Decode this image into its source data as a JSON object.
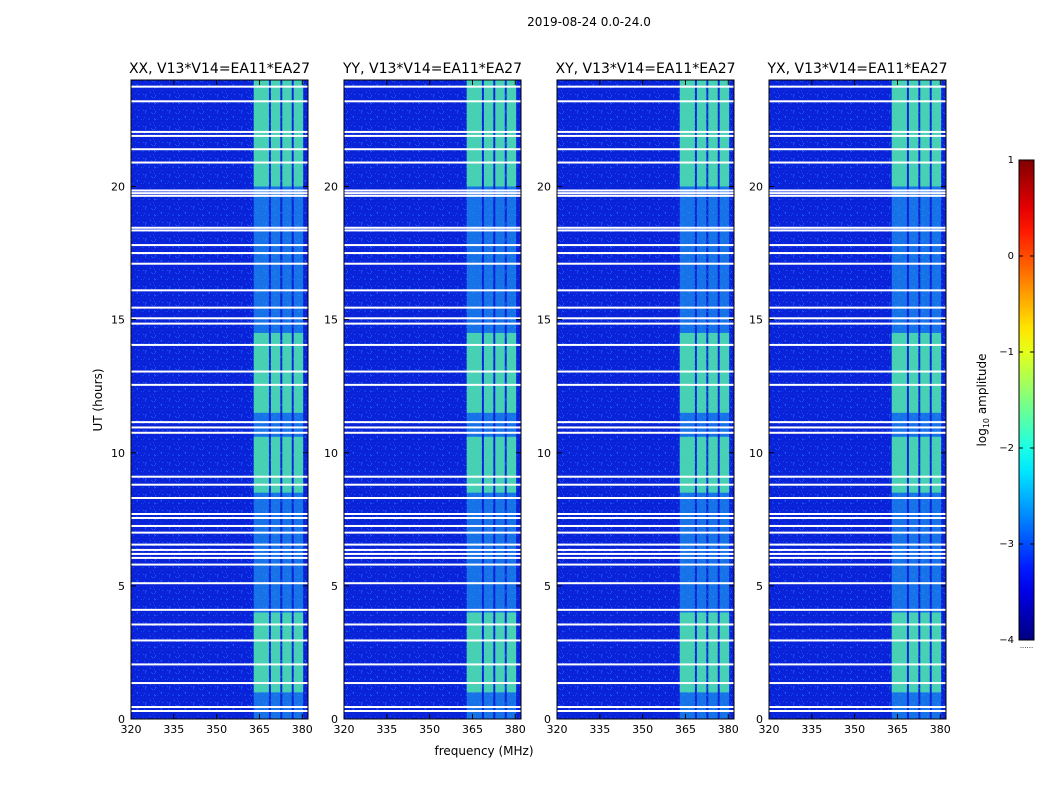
{
  "chart_data": {
    "type": "heatmap",
    "suptitle": "2019-08-24 0.0-24.0",
    "xlabel": "frequency (MHz)",
    "ylabel": "UT (hours)",
    "xlim": [
      320,
      382
    ],
    "ylim": [
      0,
      24
    ],
    "xticks": [
      320,
      335,
      350,
      365,
      380
    ],
    "yticks": [
      0,
      5,
      10,
      15,
      20
    ],
    "panels": [
      {
        "title": "XX, V13*V14=EA11*EA27"
      },
      {
        "title": "YY, V13*V14=EA11*EA27"
      },
      {
        "title": "XY, V13*V14=EA11*EA27"
      },
      {
        "title": "YX, V13*V14=EA11*EA27"
      }
    ],
    "colorbar": {
      "label": "log10 amplitude",
      "label_base": "log",
      "label_sub": "10",
      "label_rest": " amplitude",
      "range": [
        -4,
        1
      ],
      "ticks": [
        "1",
        "0",
        "−1",
        "−2",
        "−3",
        "−4"
      ],
      "tick_values": [
        1,
        0,
        -1,
        -2,
        -3,
        -4
      ],
      "colormap": "jet",
      "under_label": "......"
    },
    "gaps_hours": [
      0.3,
      0.45,
      1.35,
      2.05,
      2.95,
      3.55,
      4.1,
      5.1,
      5.8,
      6.05,
      6.2,
      6.35,
      6.55,
      7.0,
      7.25,
      7.55,
      7.7,
      8.3,
      8.8,
      9.1,
      10.75,
      10.95,
      11.15,
      12.55,
      13.05,
      14.05,
      14.85,
      15.05,
      15.45,
      16.1,
      17.1,
      17.5,
      17.8,
      18.35,
      18.45,
      19.65,
      19.75,
      19.85,
      20.9,
      21.4,
      21.9,
      22.05,
      23.2,
      23.75
    ],
    "band": {
      "freq_start": 363,
      "freq_end": 382,
      "channel_edges": [
        369,
        373,
        377,
        381
      ]
    },
    "bright_band_hours": [
      [
        1.0,
        4.0
      ],
      [
        8.5,
        10.6
      ],
      [
        11.5,
        14.5
      ],
      [
        20.0,
        24.0
      ]
    ]
  },
  "colors": {
    "background": "#ffffff",
    "axis": "#000000",
    "gap": "#ffffff"
  }
}
